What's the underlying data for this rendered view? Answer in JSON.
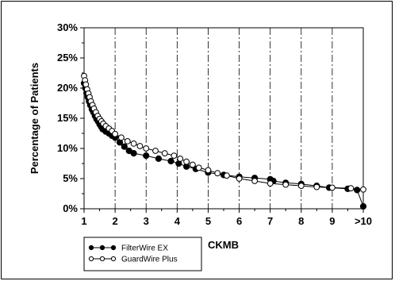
{
  "chart_data": {
    "type": "line",
    "title": "",
    "xlabel": "CKMB",
    "ylabel": "Percentage of Patients",
    "xlim": [
      1,
      10
    ],
    "ylim": [
      0,
      30
    ],
    "x_tick_labels": [
      "1",
      "2",
      "3",
      "4",
      "5",
      "6",
      "7",
      "8",
      "9",
      ">10"
    ],
    "y_tick_labels": [
      "0%",
      "5%",
      "10%",
      "15%",
      "20%",
      "25%",
      "30%"
    ],
    "grid": "vertical dash-dot lines at each integer x",
    "legend_position": "bottom-left, outside plot",
    "series": [
      {
        "name": "FilterWire EX",
        "marker": "filled-circle",
        "color": "#000000",
        "x": [
          1.0,
          1.04,
          1.08,
          1.12,
          1.16,
          1.2,
          1.25,
          1.3,
          1.35,
          1.4,
          1.45,
          1.5,
          1.55,
          1.6,
          1.7,
          1.8,
          1.9,
          2.0,
          2.15,
          2.3,
          2.45,
          2.6,
          3.0,
          3.4,
          3.8,
          4.05,
          4.3,
          4.6,
          5.0,
          5.5,
          6.0,
          6.5,
          7.0,
          7.1,
          7.5,
          8.0,
          8.5,
          8.9,
          9.5,
          9.8,
          10.0
        ],
        "values": [
          20.8,
          20.0,
          19.2,
          18.5,
          17.8,
          17.2,
          16.5,
          16.0,
          15.4,
          14.9,
          14.5,
          14.0,
          13.6,
          13.2,
          12.8,
          12.5,
          12.1,
          11.8,
          11.0,
          10.3,
          9.6,
          9.2,
          8.8,
          8.3,
          7.9,
          7.5,
          7.0,
          6.6,
          6.0,
          5.6,
          5.3,
          5.1,
          4.9,
          4.6,
          4.3,
          4.1,
          3.8,
          3.5,
          3.3,
          3.1,
          0.4
        ]
      },
      {
        "name": "GuardWire Plus",
        "marker": "open-circle",
        "color": "#000000",
        "x": [
          1.0,
          1.03,
          1.06,
          1.1,
          1.14,
          1.18,
          1.22,
          1.27,
          1.32,
          1.38,
          1.44,
          1.5,
          1.56,
          1.62,
          1.7,
          1.8,
          1.9,
          2.0,
          2.2,
          2.4,
          2.6,
          2.8,
          3.0,
          3.3,
          3.6,
          3.9,
          4.1,
          4.3,
          4.5,
          4.7,
          5.0,
          5.3,
          5.6,
          6.0,
          6.5,
          7.0,
          7.5,
          8.0,
          8.5,
          9.0,
          9.6,
          10.0
        ],
        "values": [
          22.0,
          21.3,
          20.6,
          19.8,
          19.1,
          18.5,
          17.8,
          17.2,
          16.6,
          16.0,
          15.4,
          14.9,
          14.5,
          14.1,
          13.7,
          13.3,
          12.9,
          12.4,
          11.8,
          11.2,
          10.8,
          10.4,
          10.0,
          9.6,
          9.2,
          8.8,
          8.3,
          7.8,
          7.3,
          6.8,
          6.4,
          5.9,
          5.5,
          5.0,
          4.6,
          4.2,
          4.0,
          3.8,
          3.6,
          3.5,
          3.4,
          3.2
        ]
      }
    ]
  }
}
